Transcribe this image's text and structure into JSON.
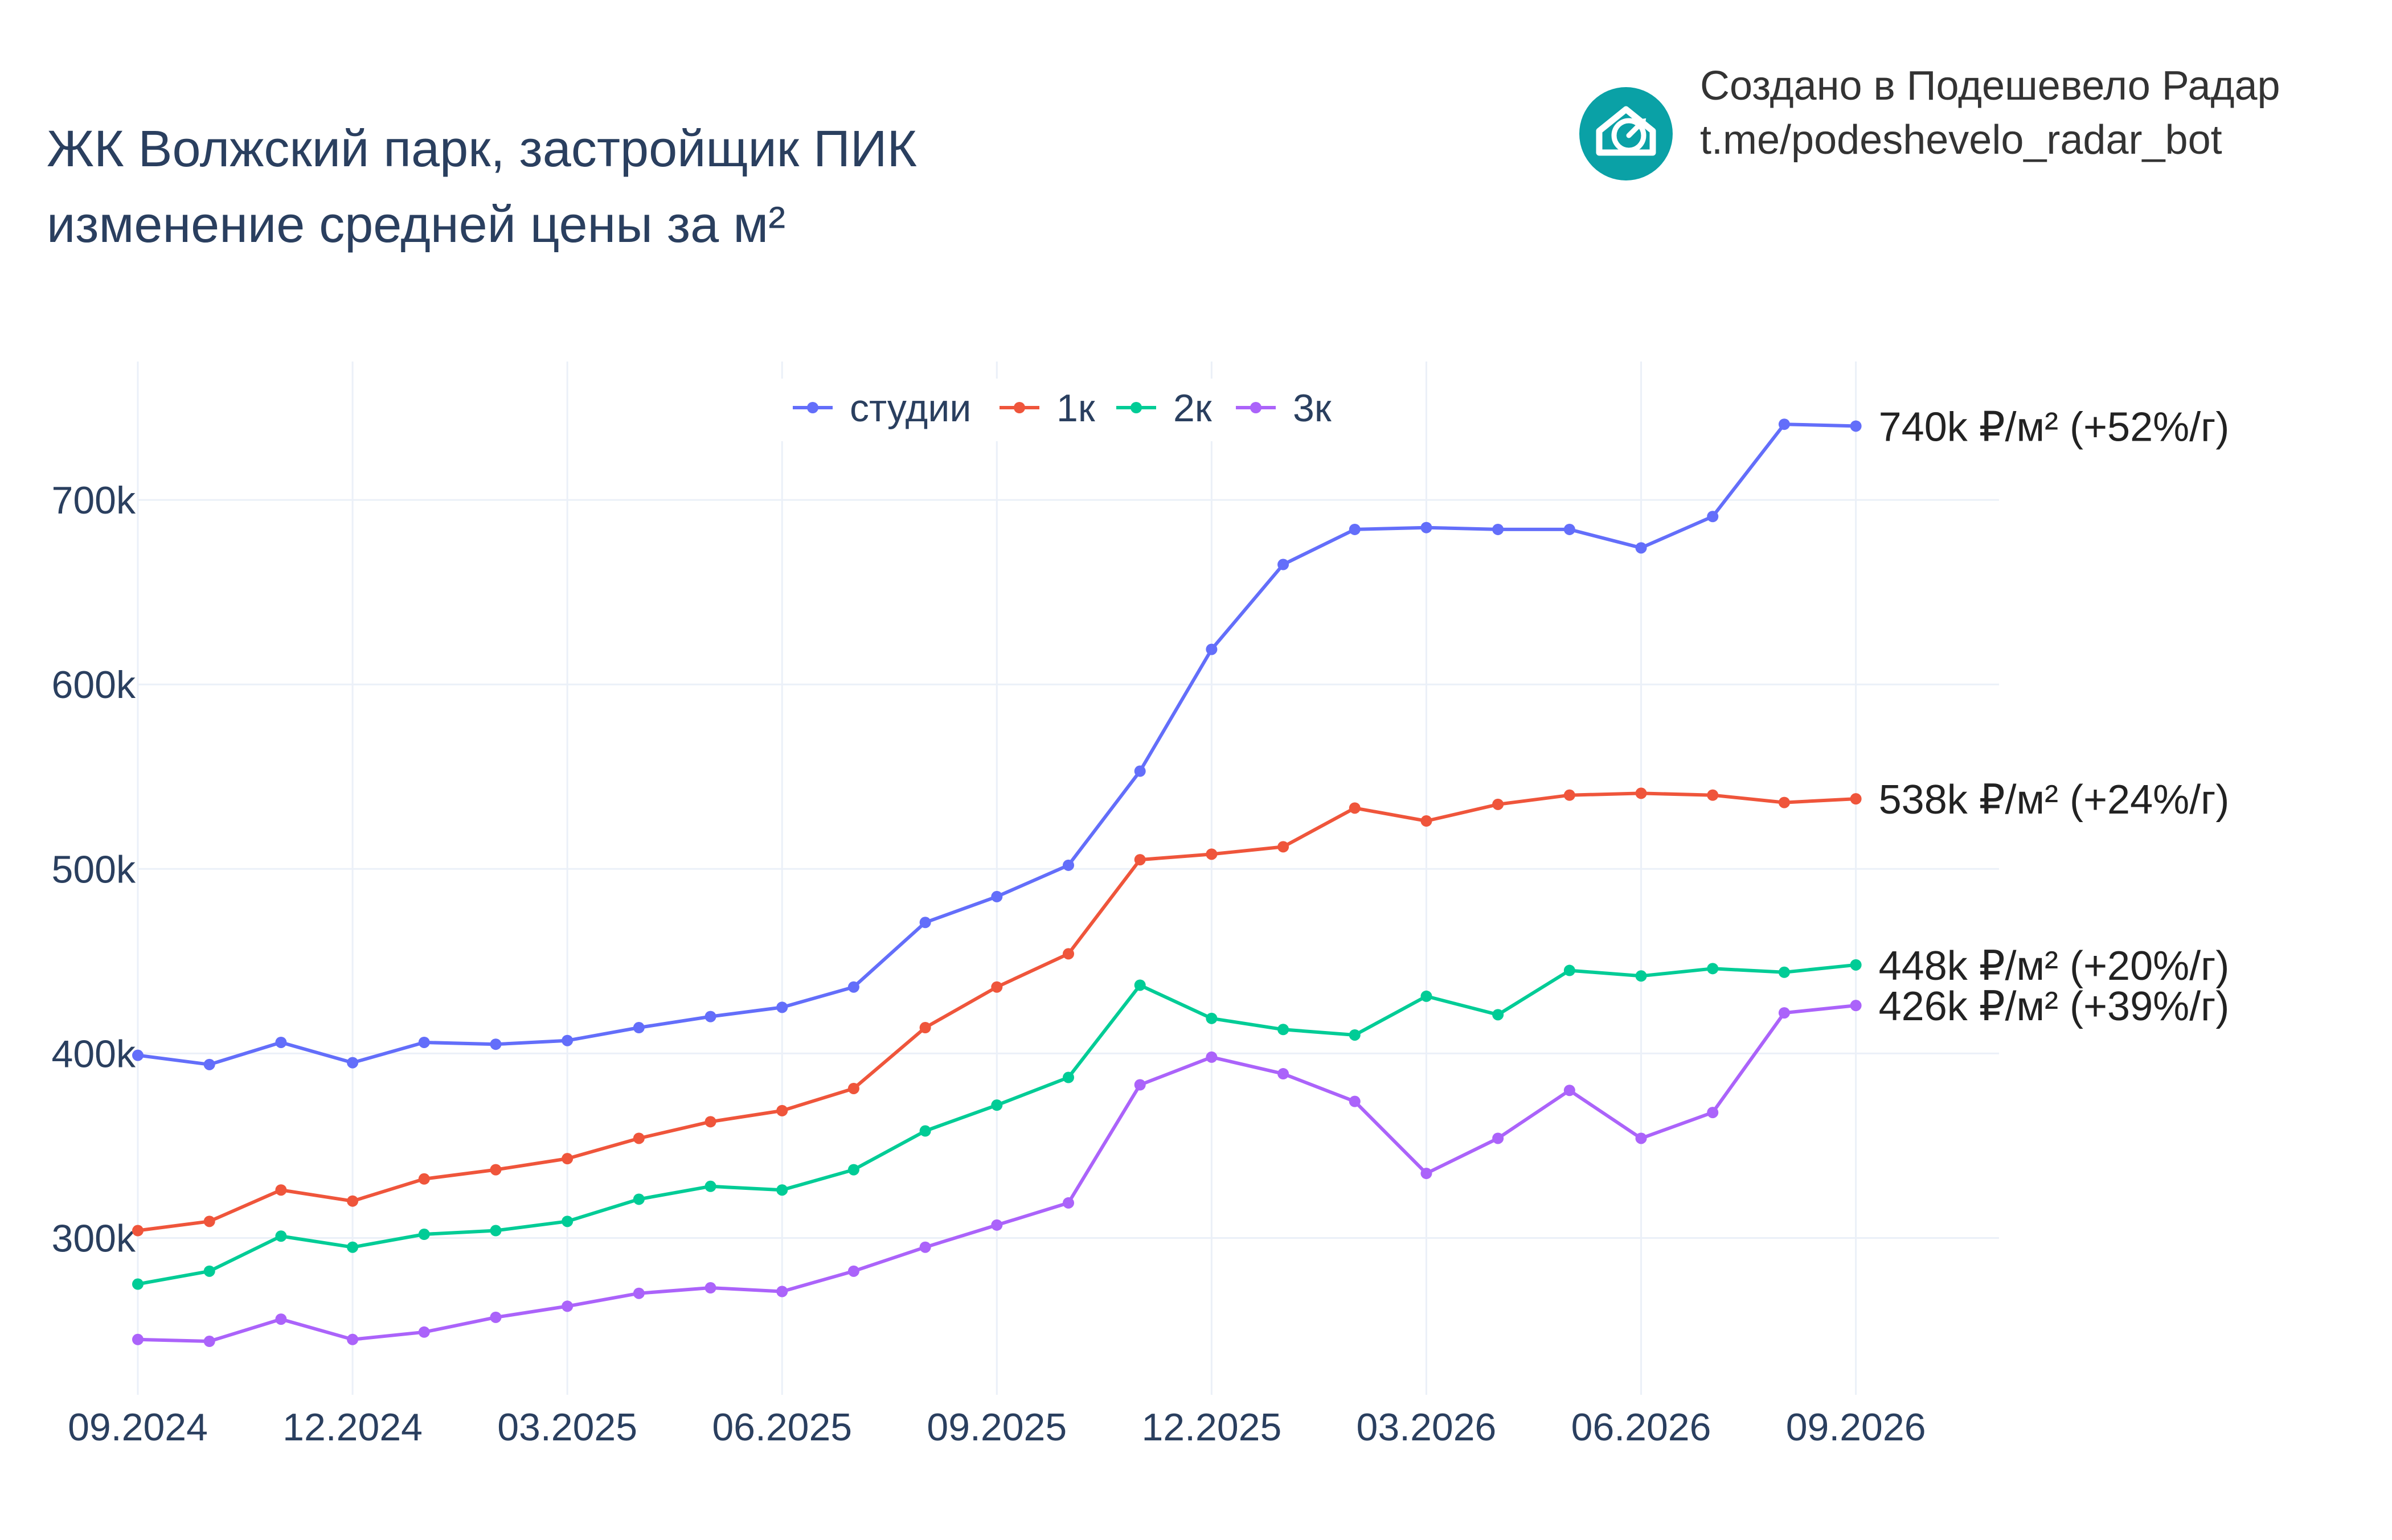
{
  "title_lines": [
    "ЖК Волжский парк, застройщик ПИК",
    "изменение средней цены за м²"
  ],
  "branding": {
    "line1": "Создано в Подешевело Радар",
    "line2": "t.me/podeshevelo_radar_bot",
    "logo_icon": "house-with-arrow-icon",
    "logo_color": "#0aa1a6"
  },
  "chart_data": {
    "type": "line",
    "title": "ЖК Волжский парк, застройщик ПИК изменение средней цены за м²",
    "xlabel": "",
    "ylabel": "",
    "x": [
      "2024-09",
      "2024-10",
      "2024-11",
      "2024-12",
      "2025-01",
      "2025-02",
      "2025-03",
      "2025-04",
      "2025-05",
      "2025-06",
      "2025-07",
      "2025-08",
      "2025-09",
      "2025-10",
      "2025-11",
      "2025-12",
      "2026-01",
      "2026-02",
      "2026-03",
      "2026-04",
      "2026-05",
      "2026-06",
      "2026-07",
      "2026-08",
      "2026-09"
    ],
    "x_ticks": [
      {
        "date": "2024-09",
        "label": "09.2024"
      },
      {
        "date": "2024-12",
        "label": "12.2024"
      },
      {
        "date": "2025-03",
        "label": "03.2025"
      },
      {
        "date": "2025-06",
        "label": "06.2025"
      },
      {
        "date": "2025-09",
        "label": "09.2025"
      },
      {
        "date": "2025-12",
        "label": "12.2025"
      },
      {
        "date": "2026-03",
        "label": "03.2026"
      },
      {
        "date": "2026-06",
        "label": "06.2026"
      },
      {
        "date": "2026-09",
        "label": "09.2026"
      }
    ],
    "xlim": [
      "2024-09",
      "2026-11"
    ],
    "y_ticks": [
      {
        "value": 300000,
        "label": "300k"
      },
      {
        "value": 400000,
        "label": "400k"
      },
      {
        "value": 500000,
        "label": "500k"
      },
      {
        "value": 600000,
        "label": "600k"
      },
      {
        "value": 700000,
        "label": "700k"
      }
    ],
    "ylim": [
      215000,
      775000
    ],
    "grid": true,
    "legend_position": "top-center",
    "series": [
      {
        "name": "студии",
        "color": "#636efa",
        "values": [
          399000,
          394000,
          406000,
          395000,
          406000,
          405000,
          407000,
          414000,
          420000,
          425000,
          436000,
          471000,
          485000,
          502000,
          553000,
          619000,
          665000,
          684000,
          685000,
          684000,
          684000,
          674000,
          691000,
          741000,
          740000
        ],
        "end_label": "740k ₽/м² (+52%/г)"
      },
      {
        "name": "1к",
        "color": "#ef553b",
        "values": [
          304000,
          309000,
          326000,
          320000,
          332000,
          337000,
          343000,
          354000,
          363000,
          369000,
          381000,
          414000,
          436000,
          454000,
          505000,
          508000,
          512000,
          533000,
          526000,
          535000,
          540000,
          541000,
          540000,
          536000,
          538000
        ],
        "end_label": "538k ₽/м² (+24%/г)"
      },
      {
        "name": "2к",
        "color": "#00cc96",
        "values": [
          275000,
          282000,
          301000,
          295000,
          302000,
          304000,
          309000,
          321000,
          328000,
          326000,
          337000,
          358000,
          372000,
          387000,
          437000,
          419000,
          413000,
          410000,
          431000,
          421000,
          445000,
          442000,
          446000,
          444000,
          448000
        ],
        "end_label": "448k ₽/м² (+20%/г)"
      },
      {
        "name": "3к",
        "color": "#ab63fa",
        "values": [
          245000,
          244000,
          256000,
          245000,
          249000,
          257000,
          263000,
          270000,
          273000,
          271000,
          282000,
          295000,
          307000,
          319000,
          383000,
          398000,
          389000,
          374000,
          335000,
          354000,
          380000,
          354000,
          368000,
          422000,
          426000
        ],
        "end_label": "426k ₽/м² (+39%/г)"
      }
    ]
  }
}
